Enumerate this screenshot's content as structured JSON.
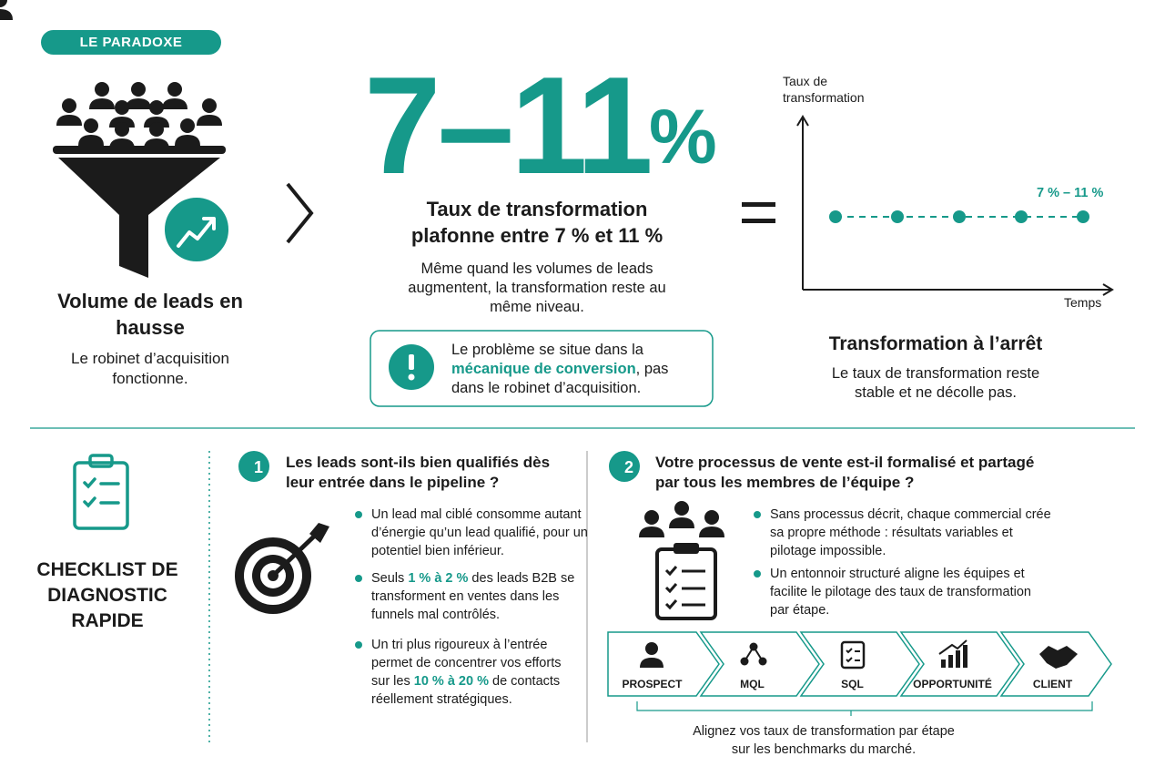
{
  "badge": "LE PARADOXE",
  "left": {
    "title": "Volume de leads en hausse",
    "text": "Le robinet d’acquisition fonctionne."
  },
  "center": {
    "big_number": "7–11",
    "big_unit": "%",
    "title": "Taux de transformation plafonne entre 7 % et 11 %",
    "text": "Même quand les volumes de leads augmentent, la transformation reste au même niveau.",
    "alert": [
      "Le problème se situe dans la ",
      "mécanique de conversion",
      ", pas dans le robinet d’acquisition."
    ]
  },
  "right": {
    "y_label": "Taux de transformation",
    "x_label": "Temps",
    "range_label": "7 % – 11 %",
    "title": "Transformation à l’arrêt",
    "text": "Le taux de transformation reste stable et ne décolle pas."
  },
  "checklist": {
    "title": "CHECKLIST DE DIAGNOSTIC RAPIDE",
    "items": [
      {
        "number": "1",
        "question": "Les leads sont-ils bien qualifiés dès leur entrée dans le pipeline ?",
        "bullets": [
          [
            "Un lead mal ciblé consomme autant d’énergie qu’un lead qualifié, pour un potentiel bien inférieur."
          ],
          [
            "Seuls ",
            "1 % à 2 %",
            " des leads B2B se transforment en ventes dans les funnels mal contrôlés."
          ],
          [
            "Un tri plus rigoureux à l’entrée permet de concentrer vos efforts sur les ",
            "10 % à 20 %",
            " de contacts réellement stratégiques."
          ]
        ]
      },
      {
        "number": "2",
        "question": "Votre processus de vente est-il formalisé et partagé par tous les membres de l’équipe ?",
        "bullets": [
          [
            "Sans processus décrit, chaque commercial crée sa propre méthode : résultats variables et pilotage impossible."
          ],
          [
            "Un entonnoir structuré aligne les équipes et facilite le pilotage des taux de transformation par étape."
          ]
        ]
      }
    ]
  },
  "funnel_steps": [
    "PROSPECT",
    "MQL",
    "SQL",
    "OPPORTUNITÉ",
    "CLIENT"
  ],
  "footer": "Alignez vos taux de transformation par étape sur les benchmarks du marché."
}
